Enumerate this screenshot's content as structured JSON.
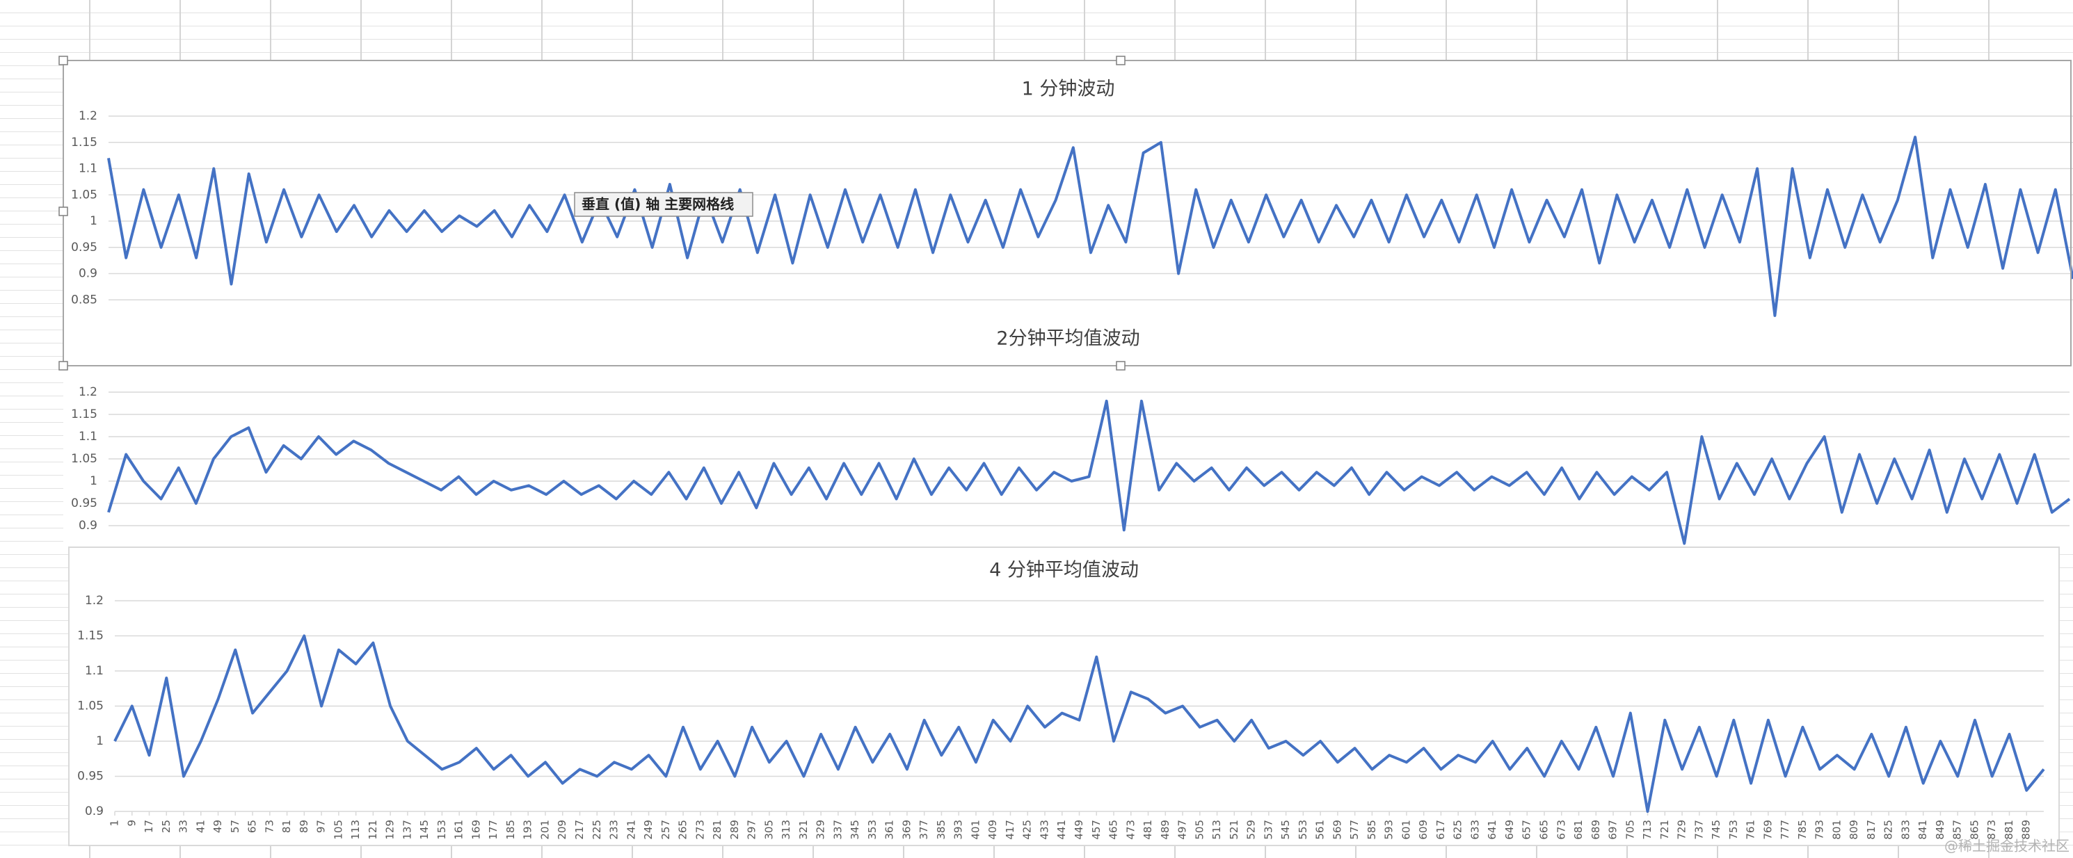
{
  "chart_data": [
    {
      "type": "line",
      "title": "1 分钟波动",
      "color": "#4472c4",
      "x": [
        1,
        9,
        17,
        25,
        33,
        41,
        49,
        57,
        65,
        73,
        81,
        89,
        97,
        105,
        113,
        121,
        129,
        137,
        145,
        153,
        161,
        169,
        177,
        185,
        193,
        201,
        209,
        217,
        225,
        233,
        241,
        249,
        257,
        265,
        273,
        281,
        289,
        297,
        305,
        313,
        321,
        329,
        337,
        345,
        353,
        361,
        369,
        377,
        385,
        393,
        401,
        409,
        417,
        425,
        433,
        441,
        449,
        457,
        465,
        473,
        481,
        489,
        497,
        505,
        513,
        521,
        529,
        537,
        545,
        553,
        561,
        569,
        577,
        585,
        593,
        601,
        609,
        617,
        625,
        633,
        641,
        649,
        657,
        665,
        673,
        681,
        689,
        697,
        705,
        713,
        721,
        729,
        737,
        745,
        753,
        761,
        769,
        777,
        785,
        793,
        801,
        809,
        817,
        825,
        833,
        841,
        849,
        857,
        865,
        873,
        881,
        889,
        897
      ],
      "values": [
        1.12,
        0.93,
        1.06,
        0.95,
        1.05,
        0.93,
        1.1,
        0.88,
        1.09,
        0.96,
        1.06,
        0.97,
        1.05,
        0.98,
        1.03,
        0.97,
        1.02,
        0.98,
        1.02,
        0.98,
        1.01,
        0.99,
        1.02,
        0.97,
        1.03,
        0.98,
        1.05,
        0.96,
        1.04,
        0.97,
        1.06,
        0.95,
        1.07,
        0.93,
        1.05,
        0.96,
        1.06,
        0.94,
        1.05,
        0.92,
        1.05,
        0.95,
        1.06,
        0.96,
        1.05,
        0.95,
        1.06,
        0.94,
        1.05,
        0.96,
        1.04,
        0.95,
        1.06,
        0.97,
        1.04,
        1.14,
        0.94,
        1.03,
        0.96,
        1.13,
        1.15,
        0.9,
        1.06,
        0.95,
        1.04,
        0.96,
        1.05,
        0.97,
        1.04,
        0.96,
        1.03,
        0.97,
        1.04,
        0.96,
        1.05,
        0.97,
        1.04,
        0.96,
        1.05,
        0.95,
        1.06,
        0.96,
        1.04,
        0.97,
        1.06,
        0.92,
        1.05,
        0.96,
        1.04,
        0.95,
        1.06,
        0.95,
        1.05,
        0.96,
        1.1,
        0.82,
        1.1,
        0.93,
        1.06,
        0.95,
        1.05,
        0.96,
        1.04,
        1.16,
        0.93,
        1.06,
        0.95,
        1.07,
        0.91,
        1.06,
        0.94,
        1.06,
        0.89
      ],
      "xlim": [
        1,
        897
      ],
      "ylim": [
        0.8,
        1.2
      ],
      "yticks": [
        0.85,
        0.9,
        0.95,
        1,
        1.05,
        1.1,
        1.15,
        1.2
      ],
      "grid": true
    },
    {
      "type": "line",
      "title": "2分钟平均值波动",
      "color": "#4472c4",
      "x": [
        1,
        9,
        17,
        25,
        33,
        41,
        49,
        57,
        65,
        73,
        81,
        89,
        97,
        105,
        113,
        121,
        129,
        137,
        145,
        153,
        161,
        169,
        177,
        185,
        193,
        201,
        209,
        217,
        225,
        233,
        241,
        249,
        257,
        265,
        273,
        281,
        289,
        297,
        305,
        313,
        321,
        329,
        337,
        345,
        353,
        361,
        369,
        377,
        385,
        393,
        401,
        409,
        417,
        425,
        433,
        441,
        449,
        457,
        465,
        473,
        481,
        489,
        497,
        505,
        513,
        521,
        529,
        537,
        545,
        553,
        561,
        569,
        577,
        585,
        593,
        601,
        609,
        617,
        625,
        633,
        641,
        649,
        657,
        665,
        673,
        681,
        689,
        697,
        705,
        713,
        721,
        729,
        737,
        745,
        753,
        761,
        769,
        777,
        785,
        793,
        801,
        809,
        817,
        825,
        833,
        841,
        849,
        857,
        865,
        873,
        881,
        889,
        897
      ],
      "values": [
        0.93,
        1.06,
        1.0,
        0.96,
        1.03,
        0.95,
        1.05,
        1.1,
        1.12,
        1.02,
        1.08,
        1.05,
        1.1,
        1.06,
        1.09,
        1.07,
        1.04,
        1.02,
        1.0,
        0.98,
        1.01,
        0.97,
        1.0,
        0.98,
        0.99,
        0.97,
        1.0,
        0.97,
        0.99,
        0.96,
        1.0,
        0.97,
        1.02,
        0.96,
        1.03,
        0.95,
        1.02,
        0.94,
        1.04,
        0.97,
        1.03,
        0.96,
        1.04,
        0.97,
        1.04,
        0.96,
        1.05,
        0.97,
        1.03,
        0.98,
        1.04,
        0.97,
        1.03,
        0.98,
        1.02,
        1.0,
        1.01,
        1.18,
        0.89,
        1.18,
        0.98,
        1.04,
        1.0,
        1.03,
        0.98,
        1.03,
        0.99,
        1.02,
        0.98,
        1.02,
        0.99,
        1.03,
        0.97,
        1.02,
        0.98,
        1.01,
        0.99,
        1.02,
        0.98,
        1.01,
        0.99,
        1.02,
        0.97,
        1.03,
        0.96,
        1.02,
        0.97,
        1.01,
        0.98,
        1.02,
        0.86,
        1.1,
        0.96,
        1.04,
        0.97,
        1.05,
        0.96,
        1.04,
        1.1,
        0.93,
        1.06,
        0.95,
        1.05,
        0.96,
        1.07,
        0.93,
        1.05,
        0.96,
        1.06,
        0.95,
        1.06,
        0.93,
        0.96
      ],
      "xlim": [
        1,
        897
      ],
      "ylim": [
        0.85,
        1.25
      ],
      "yticks": [
        0.9,
        0.95,
        1,
        1.05,
        1.1,
        1.15,
        1.2
      ],
      "grid": true
    },
    {
      "type": "line",
      "title": "4 分钟平均值波动",
      "color": "#4472c4",
      "x": [
        1,
        9,
        17,
        25,
        33,
        41,
        49,
        57,
        65,
        73,
        81,
        89,
        97,
        105,
        113,
        121,
        129,
        137,
        145,
        153,
        161,
        169,
        177,
        185,
        193,
        201,
        209,
        217,
        225,
        233,
        241,
        249,
        257,
        265,
        273,
        281,
        289,
        297,
        305,
        313,
        321,
        329,
        337,
        345,
        353,
        361,
        369,
        377,
        385,
        393,
        401,
        409,
        417,
        425,
        433,
        441,
        449,
        457,
        465,
        473,
        481,
        489,
        497,
        505,
        513,
        521,
        529,
        537,
        545,
        553,
        561,
        569,
        577,
        585,
        593,
        601,
        609,
        617,
        625,
        633,
        641,
        649,
        657,
        665,
        673,
        681,
        689,
        697,
        705,
        713,
        721,
        729,
        737,
        745,
        753,
        761,
        769,
        777,
        785,
        793,
        801,
        809,
        817,
        825,
        833,
        841,
        849,
        857,
        865,
        873,
        881,
        889,
        897
      ],
      "values": [
        1.0,
        1.05,
        0.98,
        1.09,
        0.95,
        1.0,
        1.06,
        1.13,
        1.04,
        1.07,
        1.1,
        1.15,
        1.05,
        1.13,
        1.11,
        1.14,
        1.05,
        1.0,
        0.98,
        0.96,
        0.97,
        0.99,
        0.96,
        0.98,
        0.95,
        0.97,
        0.94,
        0.96,
        0.95,
        0.97,
        0.96,
        0.98,
        0.95,
        1.02,
        0.96,
        1.0,
        0.95,
        1.02,
        0.97,
        1.0,
        0.95,
        1.01,
        0.96,
        1.02,
        0.97,
        1.01,
        0.96,
        1.03,
        0.98,
        1.02,
        0.97,
        1.03,
        1.0,
        1.05,
        1.02,
        1.04,
        1.03,
        1.12,
        1.0,
        1.07,
        1.06,
        1.04,
        1.05,
        1.02,
        1.03,
        1.0,
        1.03,
        0.99,
        1.0,
        0.98,
        1.0,
        0.97,
        0.99,
        0.96,
        0.98,
        0.97,
        0.99,
        0.96,
        0.98,
        0.97,
        1.0,
        0.96,
        0.99,
        0.95,
        1.0,
        0.96,
        1.02,
        0.95,
        1.04,
        0.9,
        1.03,
        0.96,
        1.02,
        0.95,
        1.03,
        0.94,
        1.03,
        0.95,
        1.02,
        0.96,
        0.98,
        0.96,
        1.01,
        0.95,
        1.02,
        0.94,
        1.0,
        0.95,
        1.03,
        0.95,
        1.01,
        0.93,
        0.96
      ],
      "xlim": [
        1,
        897
      ],
      "ylim": [
        0.9,
        1.2
      ],
      "yticks": [
        0.9,
        0.95,
        1,
        1.05,
        1.1,
        1.15,
        1.2
      ],
      "xticks": [
        1,
        9,
        17,
        25,
        33,
        41,
        49,
        57,
        65,
        73,
        81,
        89,
        97,
        105,
        113,
        121,
        129,
        137,
        145,
        153,
        161,
        169,
        177,
        185,
        193,
        201,
        209,
        217,
        225,
        233,
        241,
        249,
        257,
        265,
        273,
        281,
        289,
        297,
        305,
        313,
        321,
        329,
        337,
        345,
        353,
        361,
        369,
        377,
        385,
        393,
        401,
        409,
        417,
        425,
        433,
        441,
        449,
        457,
        465,
        473,
        481,
        489,
        497,
        505,
        513,
        521,
        529,
        537,
        545,
        553,
        561,
        569,
        577,
        585,
        593,
        601,
        609,
        617,
        625,
        633,
        641,
        649,
        657,
        665,
        673,
        681,
        689,
        697,
        705,
        713,
        721,
        729,
        737,
        745,
        753,
        761,
        769,
        777,
        785,
        793,
        801,
        809,
        817,
        825,
        833,
        841,
        849,
        857,
        865,
        873,
        881,
        889
      ],
      "grid": true
    }
  ],
  "tooltip": "垂直 (值) 轴 主要网格线",
  "watermark": "@稀土掘金技术社区"
}
